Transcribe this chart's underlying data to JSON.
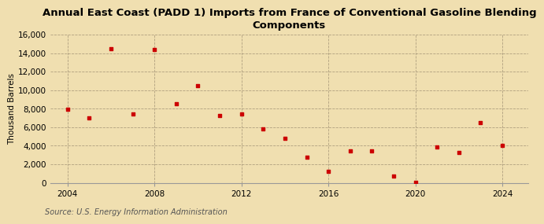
{
  "title": "Annual East Coast (PADD 1) Imports from France of Conventional Gasoline Blending\nComponents",
  "ylabel": "Thousand Barrels",
  "source": "Source: U.S. Energy Information Administration",
  "background_color": "#f0dfb0",
  "plot_bg_color": "#f0dfb0",
  "marker_color": "#cc0000",
  "years": [
    2004,
    2005,
    2006,
    2007,
    2008,
    2009,
    2010,
    2011,
    2012,
    2013,
    2014,
    2015,
    2016,
    2017,
    2018,
    2019,
    2020,
    2021,
    2022,
    2023,
    2024
  ],
  "values": [
    7950,
    7000,
    14500,
    7400,
    14400,
    8500,
    10500,
    7300,
    7400,
    5800,
    4800,
    2800,
    1200,
    3400,
    3400,
    700,
    50,
    3900,
    3300,
    6500,
    4000
  ],
  "ylim": [
    0,
    16000
  ],
  "xlim": [
    2003.2,
    2025.2
  ],
  "yticks": [
    0,
    2000,
    4000,
    6000,
    8000,
    10000,
    12000,
    14000,
    16000
  ],
  "xticks": [
    2004,
    2008,
    2012,
    2016,
    2020,
    2024
  ],
  "title_fontsize": 9.5,
  "axis_fontsize": 7.5,
  "source_fontsize": 7
}
